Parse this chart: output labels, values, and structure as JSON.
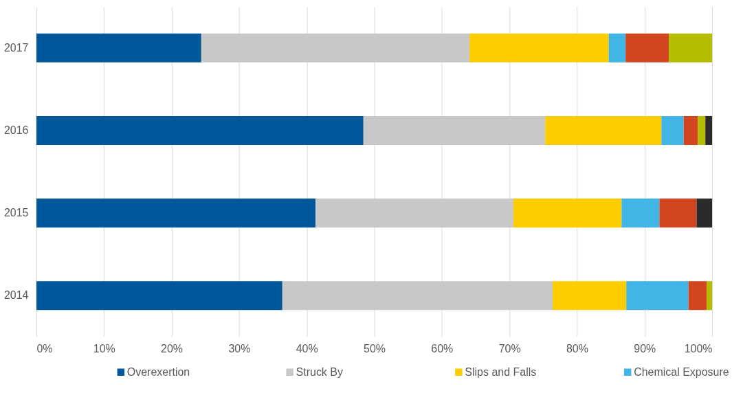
{
  "chart_data": {
    "type": "bar",
    "orientation": "horizontal",
    "stacked": true,
    "categories": [
      "2017",
      "2016",
      "2015",
      "2014"
    ],
    "series": [
      {
        "name": "Overexertion",
        "color": "#00579a",
        "values": [
          24.4,
          48.4,
          41.3,
          36.4
        ]
      },
      {
        "name": "Struck By",
        "color": "#c8c8c8",
        "values": [
          39.7,
          26.9,
          29.3,
          40.0
        ]
      },
      {
        "name": "Slips and Falls",
        "color": "#fdcd00",
        "values": [
          20.6,
          17.2,
          16.0,
          10.9
        ]
      },
      {
        "name": "Chemical Exposure",
        "color": "#41b5e5",
        "values": [
          2.5,
          3.3,
          5.6,
          9.2
        ]
      },
      {
        "color": "#d1461f",
        "values": [
          6.4,
          2.1,
          5.5,
          2.7
        ]
      },
      {
        "color": "#b5bd00",
        "values": [
          6.4,
          1.1,
          null,
          0.8
        ]
      },
      {
        "color": "#2b2b2b",
        "values": [
          null,
          1.0,
          2.3,
          null
        ]
      }
    ],
    "xlim": [
      0,
      100
    ],
    "xticks": [
      {
        "value": 0,
        "label": "0%"
      },
      {
        "value": 10,
        "label": "10%"
      },
      {
        "value": 20,
        "label": "20%"
      },
      {
        "value": 30,
        "label": "30%"
      },
      {
        "value": 40,
        "label": "40%"
      },
      {
        "value": 50,
        "label": "50%"
      },
      {
        "value": 60,
        "label": "60%"
      },
      {
        "value": 70,
        "label": "70%"
      },
      {
        "value": 80,
        "label": "80%"
      },
      {
        "value": 90,
        "label": "90%"
      },
      {
        "value": 100,
        "label": "100%"
      }
    ],
    "grid": "x",
    "legend": "bottom"
  }
}
